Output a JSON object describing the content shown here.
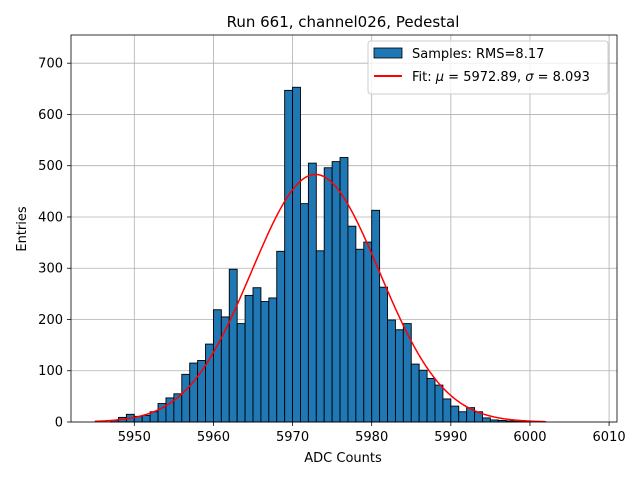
{
  "chart_data": {
    "type": "bar",
    "title": "Run 661, channel026, Pedestal",
    "xlabel": "ADC Counts",
    "ylabel": "Entries",
    "xlim": [
      5942,
      6011
    ],
    "ylim": [
      0,
      755
    ],
    "xticks": [
      5950,
      5960,
      5970,
      5980,
      5990,
      6000,
      6010
    ],
    "yticks": [
      0,
      100,
      200,
      300,
      400,
      500,
      600,
      700
    ],
    "grid": true,
    "legend_placement": "upper-right",
    "histogram": {
      "name": "Samples: RMS=8.17",
      "bin_width": 1,
      "bin_lefts": [
        5947,
        5948,
        5949,
        5950,
        5951,
        5952,
        5953,
        5954,
        5955,
        5956,
        5957,
        5958,
        5959,
        5960,
        5961,
        5962,
        5963,
        5964,
        5965,
        5966,
        5967,
        5968,
        5969,
        5970,
        5971,
        5972,
        5973,
        5974,
        5975,
        5976,
        5977,
        5978,
        5979,
        5980,
        5981,
        5982,
        5983,
        5984,
        5985,
        5986,
        5987,
        5988,
        5989,
        5990,
        5991,
        5992,
        5993,
        5994,
        5995,
        5996,
        5997,
        5998,
        5999
      ],
      "values": [
        3,
        9,
        15,
        11,
        13,
        20,
        36,
        47,
        55,
        93,
        115,
        120,
        152,
        219,
        205,
        298,
        192,
        247,
        262,
        235,
        242,
        333,
        647,
        653,
        426,
        505,
        334,
        496,
        508,
        516,
        382,
        337,
        351,
        413,
        263,
        199,
        180,
        192,
        113,
        101,
        85,
        72,
        45,
        31,
        20,
        28,
        20,
        8,
        4,
        3,
        2,
        1,
        1
      ],
      "color": "#1f77b4"
    },
    "fit": {
      "name": "Fit: μ = 5972.89, σ = 8.093",
      "label_prefix": "Fit: ",
      "mu_symbol": "μ",
      "mu_text": " = 5972.89, ",
      "sigma_symbol": "σ",
      "sigma_text": " = 8.093",
      "mu": 5972.89,
      "sigma": 8.093,
      "amplitude": 483,
      "x_range": [
        5945,
        6002
      ],
      "color": "#ff0000"
    }
  }
}
